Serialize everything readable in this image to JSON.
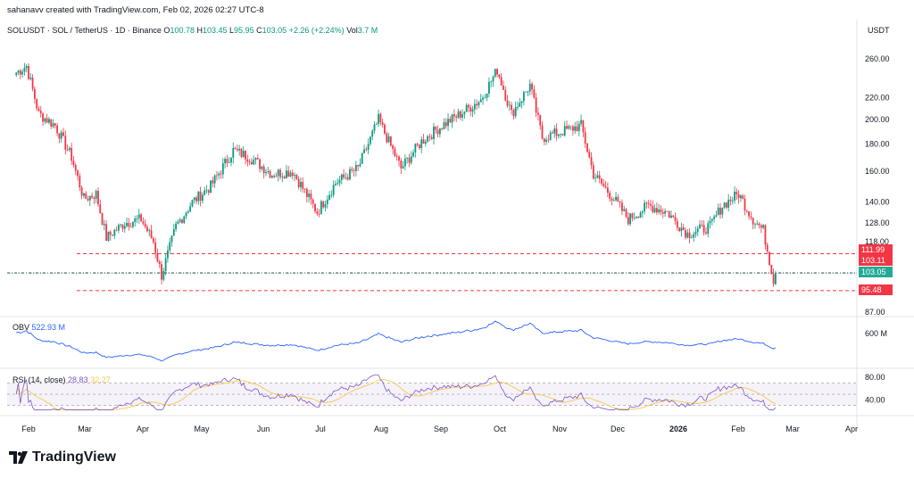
{
  "header": {
    "watermark": "sahanavv created with TradingView.com, Feb 02, 2026 02:27 UTC-8",
    "symbol": "SOLUSDT · SOL / TetherUS · 1D · Binance",
    "o_label": "O",
    "o": "100.78",
    "h_label": "H",
    "h": "103.45",
    "l_label": "L",
    "l": "95.95",
    "c_label": "C",
    "c": "103.05",
    "change": "+2.26 (+2.24%)",
    "vol_label": "Vol",
    "vol": "3.7 M",
    "currency": "USDT"
  },
  "indicators": {
    "obv_label": "OBV",
    "obv_value": "522.93 M",
    "rsi_label": "RSI (14, close)",
    "rsi_value": "28.83",
    "rsi_ma": "32.27"
  },
  "price_tags": {
    "upper": "111.99",
    "last": "103.11",
    "close": "103.05",
    "lower": "95.48"
  },
  "colors": {
    "up": "#089981",
    "down": "#f23645",
    "obv": "#2962ff",
    "rsi": "#7e57c2",
    "rsi_ma": "#f7c84a",
    "level": "#f23645"
  },
  "brand": "TradingView",
  "chart_data": {
    "type": "candlestick",
    "title": "",
    "y_axis": {
      "scale": "log",
      "ticks": [
        87,
        118,
        128,
        140,
        160,
        180,
        200,
        220,
        260
      ],
      "labels": [
        "87.00",
        "118.00",
        "128.00",
        "140.00",
        "160.00",
        "180.00",
        "200.00",
        "220.00",
        "260.00"
      ],
      "range": [
        85,
        278
      ]
    },
    "x_axis": {
      "months": [
        "Feb",
        "Mar",
        "Apr",
        "May",
        "Jun",
        "Jul",
        "Aug",
        "Sep",
        "Oct",
        "Nov",
        "Dec",
        "2026",
        "Feb",
        "Mar",
        "Apr"
      ]
    },
    "levels": [
      111.99,
      95.48
    ],
    "last_price": 103.05,
    "close_path": [
      {
        "date": "2025-01-26",
        "close": 245
      },
      {
        "date": "2025-01-31",
        "close": 252
      },
      {
        "date": "2025-02-06",
        "close": 205
      },
      {
        "date": "2025-02-14",
        "close": 195
      },
      {
        "date": "2025-02-22",
        "close": 170
      },
      {
        "date": "2025-02-28",
        "close": 142
      },
      {
        "date": "2025-03-06",
        "close": 145
      },
      {
        "date": "2025-03-11",
        "close": 120
      },
      {
        "date": "2025-03-20",
        "close": 128
      },
      {
        "date": "2025-03-28",
        "close": 130
      },
      {
        "date": "2025-04-03",
        "close": 118
      },
      {
        "date": "2025-04-07",
        "close": 102
      },
      {
        "date": "2025-04-14",
        "close": 126
      },
      {
        "date": "2025-04-22",
        "close": 140
      },
      {
        "date": "2025-05-01",
        "close": 150
      },
      {
        "date": "2025-05-12",
        "close": 175
      },
      {
        "date": "2025-05-20",
        "close": 170
      },
      {
        "date": "2025-05-31",
        "close": 158
      },
      {
        "date": "2025-06-10",
        "close": 160
      },
      {
        "date": "2025-06-22",
        "close": 134
      },
      {
        "date": "2025-07-01",
        "close": 152
      },
      {
        "date": "2025-07-12",
        "close": 162
      },
      {
        "date": "2025-07-22",
        "close": 200
      },
      {
        "date": "2025-08-02",
        "close": 162
      },
      {
        "date": "2025-08-12",
        "close": 182
      },
      {
        "date": "2025-08-22",
        "close": 195
      },
      {
        "date": "2025-08-31",
        "close": 205
      },
      {
        "date": "2025-09-10",
        "close": 218
      },
      {
        "date": "2025-09-18",
        "close": 248
      },
      {
        "date": "2025-09-25",
        "close": 205
      },
      {
        "date": "2025-10-04",
        "close": 232
      },
      {
        "date": "2025-10-10",
        "close": 185
      },
      {
        "date": "2025-10-20",
        "close": 190
      },
      {
        "date": "2025-10-29",
        "close": 195
      },
      {
        "date": "2025-11-04",
        "close": 158
      },
      {
        "date": "2025-11-14",
        "close": 142
      },
      {
        "date": "2025-11-21",
        "close": 130
      },
      {
        "date": "2025-12-01",
        "close": 138
      },
      {
        "date": "2025-12-10",
        "close": 134
      },
      {
        "date": "2025-12-20",
        "close": 122
      },
      {
        "date": "2025-12-31",
        "close": 126
      },
      {
        "date": "2026-01-06",
        "close": 138
      },
      {
        "date": "2026-01-14",
        "close": 145
      },
      {
        "date": "2026-01-21",
        "close": 130
      },
      {
        "date": "2026-01-26",
        "close": 124
      },
      {
        "date": "2026-01-31",
        "close": 100
      },
      {
        "date": "2026-02-01",
        "close": 103.05
      }
    ],
    "obv_axis": {
      "ticks": [
        "600 M"
      ]
    },
    "rsi_axis": {
      "ticks": [
        "80.00",
        "40.00"
      ],
      "band": [
        30,
        70
      ]
    }
  }
}
